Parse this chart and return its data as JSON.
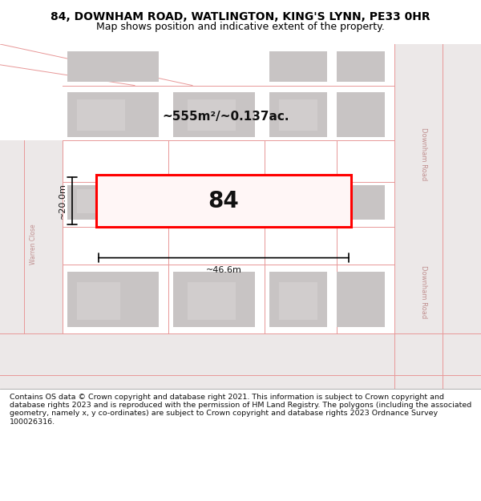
{
  "title_line1": "84, DOWNHAM ROAD, WATLINGTON, KING'S LYNN, PE33 0HR",
  "title_line2": "Map shows position and indicative extent of the property.",
  "footer_text": "Contains OS data © Crown copyright and database right 2021. This information is subject to Crown copyright and database rights 2023 and is reproduced with the permission of HM Land Registry. The polygons (including the associated geometry, namely x, y co-ordinates) are subject to Crown copyright and database rights 2023 Ordnance Survey 100026316.",
  "area_text": "~555m²/~0.137ac.",
  "plot_number": "84",
  "dim_width": "~46.6m",
  "dim_height": "~20.0m",
  "road_label_right1": "Downham Road",
  "road_label_right2": "Downham Road",
  "road_label_left": "Warren Close",
  "map_bg": "#f8f4f4",
  "building_color": "#c8c4c4",
  "highlight_color": "#ff0000",
  "title_bg": "#ffffff",
  "footer_bg": "#ffffff",
  "road_line_color": "#e89898",
  "road_area_color": "#ece8e8",
  "text_color": "#111111",
  "road_text_color": "#c09090"
}
